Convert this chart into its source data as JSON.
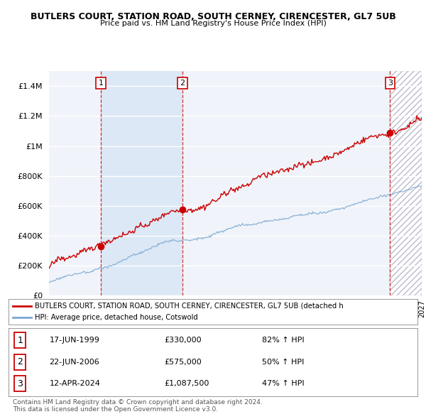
{
  "title": "BUTLERS COURT, STATION ROAD, SOUTH CERNEY, CIRENCESTER, GL7 5UB",
  "subtitle": "Price paid vs. HM Land Registry's House Price Index (HPI)",
  "hpi_label": "HPI: Average price, detached house, Cotswold",
  "property_label": "BUTLERS COURT, STATION ROAD, SOUTH CERNEY, CIRENCESTER, GL7 5UB (detached h",
  "sale_dates": [
    "17-JUN-1999",
    "22-JUN-2006",
    "12-APR-2024"
  ],
  "sale_prices": [
    330000,
    575000,
    1087500
  ],
  "sale_labels": [
    "1",
    "2",
    "3"
  ],
  "sale_hpi_pct": [
    "82% ↑ HPI",
    "50% ↑ HPI",
    "47% ↑ HPI"
  ],
  "footer1": "Contains HM Land Registry data © Crown copyright and database right 2024.",
  "footer2": "This data is licensed under the Open Government Licence v3.0.",
  "red_color": "#cc0000",
  "blue_color": "#7aa8d2",
  "bg_chart": "#f0f4fa",
  "bg_highlight": "#dce8f5",
  "bg_hatch": "#e0e0e8",
  "ylim": [
    0,
    1500000
  ],
  "start_year": 1995,
  "end_year": 2027,
  "sale_year_floats": [
    1999.46,
    2006.46,
    2024.28
  ]
}
